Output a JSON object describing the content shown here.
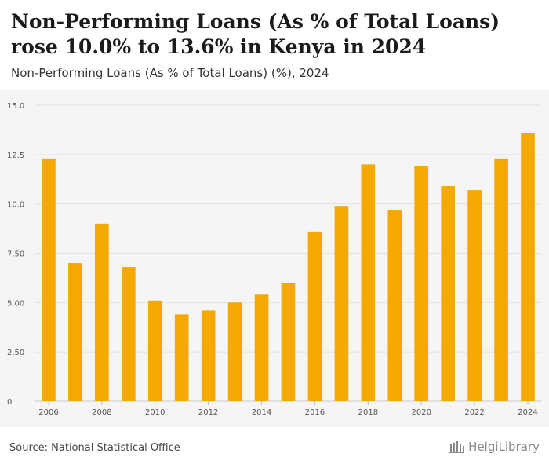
{
  "header": {
    "title": "Non-Performing Loans (As % of Total Loans) rose 10.0% to 13.6% in Kenya in 2024",
    "subtitle": "Non-Performing Loans (As % of Total Loans) (%), 2024"
  },
  "footer": {
    "source": "Source: National Statistical Office",
    "logo_text": "HelgiLibrary"
  },
  "colors": {
    "bar": "#f5a800",
    "grid": "#e2e2e2",
    "background": "#f5f5f5"
  },
  "chart_data": {
    "type": "bar",
    "categories": [
      "2006",
      "2007",
      "2008",
      "2009",
      "2010",
      "2011",
      "2012",
      "2013",
      "2014",
      "2015",
      "2016",
      "2017",
      "2018",
      "2019",
      "2020",
      "2021",
      "2022",
      "2023",
      "2024"
    ],
    "values": [
      12.3,
      7.0,
      9.0,
      6.8,
      5.1,
      4.4,
      4.6,
      5.0,
      5.4,
      6.0,
      8.6,
      9.9,
      12.0,
      9.7,
      11.9,
      10.9,
      10.7,
      12.3,
      13.6
    ],
    "x_tick_labels": [
      "2006",
      "2008",
      "2010",
      "2012",
      "2014",
      "2016",
      "2018",
      "2020",
      "2022",
      "2024"
    ],
    "y_ticks": [
      0,
      2.5,
      5,
      7.5,
      10,
      12.5,
      15
    ],
    "y_tick_labels": [
      "0",
      "2.50",
      "5.00",
      "7.50",
      "10.0",
      "12.5",
      "15.0"
    ],
    "ylim": [
      0,
      15
    ],
    "grid": true,
    "xlabel": "",
    "ylabel": ""
  }
}
